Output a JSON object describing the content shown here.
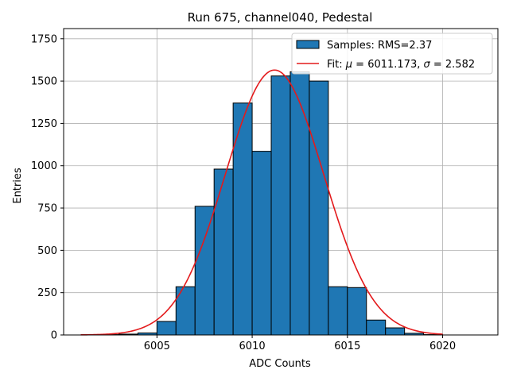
{
  "chart_data": {
    "type": "bar",
    "title": "Run 675, channel040, Pedestal",
    "xlabel": "ADC Counts",
    "ylabel": "Entries",
    "xlim": [
      6000.1,
      6022.9
    ],
    "ylim": [
      0,
      1810
    ],
    "xticks": [
      6005,
      6010,
      6015,
      6020
    ],
    "xtick_labels": [
      "6005",
      "6010",
      "6015",
      "6020"
    ],
    "yticks": [
      0,
      250,
      500,
      750,
      1000,
      1250,
      1500,
      1750
    ],
    "ytick_labels": [
      "0",
      "250",
      "500",
      "750",
      "1000",
      "1250",
      "1500",
      "1750"
    ],
    "grid": true,
    "legend_placement": "top-right",
    "series": [
      {
        "name": "Samples: RMS=2.37",
        "kind": "histogram",
        "color": "#1f77b4",
        "edge_color": "#000000",
        "bins": [
          {
            "x0": 6002,
            "x1": 6003,
            "value": 2
          },
          {
            "x0": 6003,
            "x1": 6004,
            "value": 5
          },
          {
            "x0": 6004,
            "x1": 6005,
            "value": 12
          },
          {
            "x0": 6005,
            "x1": 6006,
            "value": 80
          },
          {
            "x0": 6006,
            "x1": 6007,
            "value": 285
          },
          {
            "x0": 6007,
            "x1": 6008,
            "value": 760
          },
          {
            "x0": 6008,
            "x1": 6009,
            "value": 980
          },
          {
            "x0": 6009,
            "x1": 6010,
            "value": 1370
          },
          {
            "x0": 6010,
            "x1": 6011,
            "value": 1085
          },
          {
            "x0": 6011,
            "x1": 6012,
            "value": 1530
          },
          {
            "x0": 6012,
            "x1": 6013,
            "value": 1555
          },
          {
            "x0": 6013,
            "x1": 6014,
            "value": 1500
          },
          {
            "x0": 6014,
            "x1": 6015,
            "value": 285
          },
          {
            "x0": 6015,
            "x1": 6016,
            "value": 280
          },
          {
            "x0": 6016,
            "x1": 6017,
            "value": 88
          },
          {
            "x0": 6017,
            "x1": 6018,
            "value": 42
          },
          {
            "x0": 6018,
            "x1": 6019,
            "value": 10
          },
          {
            "x0": 6019,
            "x1": 6020,
            "value": 2
          }
        ]
      },
      {
        "name": "Fit: μ = 6011.173, σ = 2.582",
        "name_parts": [
          "Fit: ",
          "μ",
          " = 6011.173, ",
          "σ",
          " = 2.582"
        ],
        "kind": "gaussian",
        "color": "#e31a1c",
        "mu": 6011.173,
        "sigma": 2.582,
        "amplitude": 1565,
        "x_range": [
          6001,
          6020
        ]
      }
    ]
  }
}
